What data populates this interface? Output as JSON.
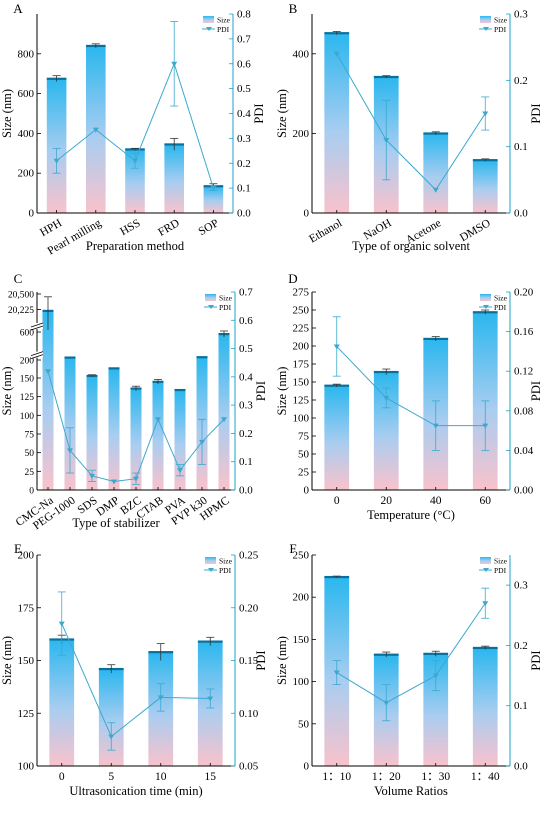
{
  "chart_data": [
    {
      "panel": "A",
      "type": "bar",
      "categories": [
        "HPH",
        "Pearl milling",
        "HSS",
        "FRD",
        "SOP"
      ],
      "xlabel": "Preparation method",
      "ylabel": "Size (nm)",
      "y2label": "PDI",
      "ylim": [
        0,
        1000
      ],
      "yticks": [
        0,
        200,
        400,
        600,
        800
      ],
      "y2lim": [
        0,
        0.8
      ],
      "y2ticks": [
        0.0,
        0.1,
        0.2,
        0.3,
        0.4,
        0.5,
        0.6,
        0.7,
        0.8
      ],
      "legend": [
        "Size",
        "PDI"
      ],
      "series": [
        {
          "name": "Size",
          "values": [
            675,
            840,
            320,
            345,
            135
          ],
          "errors": [
            15,
            10,
            5,
            30,
            12
          ]
        },
        {
          "name": "PDI",
          "values": [
            0.21,
            0.335,
            0.21,
            0.6,
            0.1
          ],
          "errors": [
            0.05,
            0.0,
            0.03,
            0.17,
            0.01
          ]
        }
      ]
    },
    {
      "panel": "B",
      "type": "bar",
      "categories": [
        "Ethanol",
        "NaOH",
        "Acetone",
        "DMSO"
      ],
      "xlabel": "Type of organic solvent",
      "ylabel": "Size (nm)",
      "y2label": "PDI",
      "ylim": [
        0,
        500
      ],
      "yticks": [
        0,
        200,
        400
      ],
      "y2lim": [
        0,
        0.3
      ],
      "y2ticks": [
        0.0,
        0.1,
        0.2,
        0.3
      ],
      "legend": [
        "Size",
        "PDI"
      ],
      "series": [
        {
          "name": "Size",
          "values": [
            452,
            342,
            200,
            133
          ],
          "errors": [
            4,
            3,
            4,
            3
          ]
        },
        {
          "name": "PDI",
          "values": [
            0.24,
            0.11,
            0.035,
            0.15
          ],
          "errors": [
            0.0,
            0.06,
            0.0,
            0.025
          ]
        }
      ]
    },
    {
      "panel": "C",
      "type": "bar",
      "categories": [
        "CMC-Na",
        "PEG-1000",
        "SDS",
        "DMP",
        "BZC",
        "CTAB",
        "PVA",
        "PVP k30",
        "HPMC"
      ],
      "xlabel": "Type of stabilizer",
      "ylabel": "Size (nm)",
      "y2label": "PDI",
      "yticks_labels": [
        "0",
        "25",
        "50",
        "75",
        "100",
        "125",
        "150",
        "200",
        "600",
        "20,225",
        "20,500"
      ],
      "y2lim": [
        0,
        0.7
      ],
      "y2ticks": [
        0.0,
        0.1,
        0.2,
        0.3,
        0.4,
        0.5,
        0.6,
        0.7
      ],
      "legend": [
        "Size",
        "PDI"
      ],
      "series": [
        {
          "name": "Size",
          "values": [
            20200,
            207,
            156,
            177,
            136,
            145,
            134,
            208,
            560
          ],
          "errors": [
            250,
            0,
            3,
            0,
            3,
            3,
            0,
            0,
            60
          ]
        },
        {
          "name": "PDI",
          "values": [
            0.42,
            0.14,
            0.05,
            0.03,
            0.04,
            0.25,
            0.07,
            0.17,
            0.25
          ],
          "errors": [
            0.0,
            0.08,
            0.02,
            0.0,
            0.02,
            0.0,
            0.02,
            0.08,
            0.0
          ]
        }
      ]
    },
    {
      "panel": "D",
      "type": "bar",
      "categories": [
        "0",
        "20",
        "40",
        "60"
      ],
      "xlabel": "Temperature (°C)",
      "ylabel": "Size (nm)",
      "y2label": "PDI",
      "ylim": [
        0,
        275
      ],
      "yticks": [
        0,
        25,
        50,
        75,
        100,
        125,
        150,
        175,
        200,
        225,
        250,
        275
      ],
      "y2lim": [
        0,
        0.2
      ],
      "y2ticks": [
        0.0,
        0.04,
        0.08,
        0.12,
        0.16,
        0.2
      ],
      "legend": [
        "Size",
        "PDI"
      ],
      "series": [
        {
          "name": "Size",
          "values": [
            145,
            164,
            210,
            247
          ],
          "errors": [
            2,
            4,
            3,
            3
          ]
        },
        {
          "name": "PDI",
          "values": [
            0.145,
            0.093,
            0.065,
            0.065
          ],
          "errors": [
            0.03,
            0.01,
            0.025,
            0.025
          ]
        }
      ]
    },
    {
      "panel": "E",
      "type": "bar",
      "categories": [
        "0",
        "5",
        "10",
        "15"
      ],
      "xlabel": "Ultrasonication time (min)",
      "ylabel": "Size (nm)",
      "y2label": "PDI",
      "ylim": [
        100,
        200
      ],
      "yticks": [
        100,
        125,
        150,
        175,
        200
      ],
      "y2lim": [
        0.05,
        0.25
      ],
      "y2ticks": [
        0.05,
        0.1,
        0.15,
        0.2,
        0.25
      ],
      "legend": [
        "Size",
        "PDI"
      ],
      "series": [
        {
          "name": "Size",
          "values": [
            160,
            146,
            154,
            159
          ],
          "errors": [
            2,
            2,
            4,
            2
          ]
        },
        {
          "name": "PDI",
          "values": [
            0.185,
            0.078,
            0.115,
            0.114
          ],
          "errors": [
            0.03,
            0.013,
            0.013,
            0.009
          ]
        }
      ]
    },
    {
      "panel": "F",
      "type": "bar",
      "categories": [
        "1：10",
        "1：20",
        "1：30",
        "1：40"
      ],
      "xlabel": "Volume Ratios",
      "ylabel": "Size (nm)",
      "y2label": "PDI",
      "ylim": [
        0,
        250
      ],
      "yticks": [
        0,
        50,
        100,
        150,
        200,
        250
      ],
      "y2lim": [
        0,
        0.35
      ],
      "y2ticks": [
        0.0,
        0.1,
        0.2,
        0.3
      ],
      "legend": [
        "Size",
        "PDI"
      ],
      "series": [
        {
          "name": "Size",
          "values": [
            224,
            132,
            133,
            140
          ],
          "errors": [
            1,
            3,
            3,
            2
          ]
        },
        {
          "name": "PDI",
          "values": [
            0.155,
            0.105,
            0.15,
            0.27
          ],
          "errors": [
            0.02,
            0.03,
            0.025,
            0.025
          ]
        }
      ]
    }
  ],
  "colors": {
    "bar_top": "#2ab7ef",
    "bar_bottom": "#f9c2cc",
    "line": "#3ba9cf",
    "axis": "#1aa3c9"
  }
}
